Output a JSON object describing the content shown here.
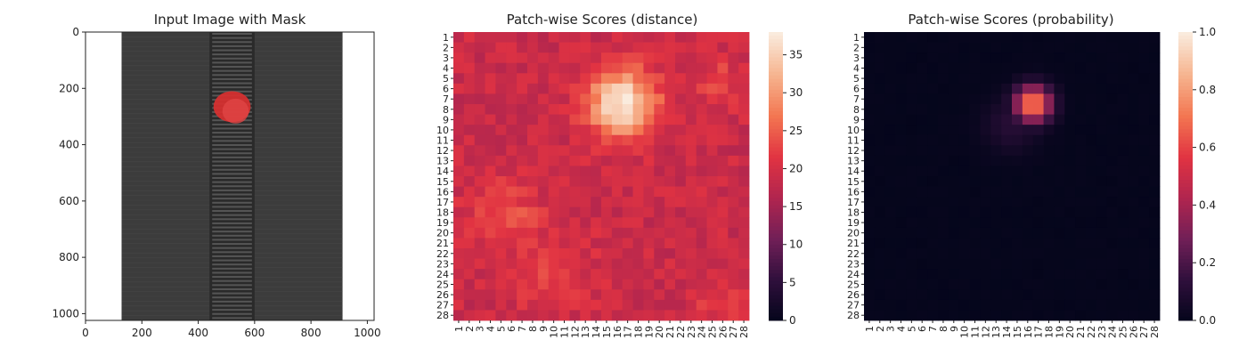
{
  "figure": {
    "colormap_stops": [
      "#03051a",
      "#2e0f3b",
      "#701f57",
      "#b0254f",
      "#e13342",
      "#f37651",
      "#f6b48f",
      "#faebdd"
    ]
  },
  "chart_data": [
    {
      "type": "image",
      "title": "Input Image with Mask",
      "xlim": [
        0,
        1024
      ],
      "ylim": [
        1024,
        0
      ],
      "xticks": [
        0,
        200,
        400,
        600,
        800,
        1000
      ],
      "yticks": [
        0,
        200,
        400,
        600,
        800,
        1000
      ],
      "fabric_x_range": [
        128,
        912
      ],
      "zipper_x_range": [
        440,
        600
      ],
      "mask_center": [
        520,
        265
      ],
      "mask_radius": [
        55,
        55
      ],
      "colors": {
        "fabric": "#3c3c3c",
        "zipper": "#2a2a2a",
        "mask": "#d93030",
        "background": "#ffffff"
      }
    },
    {
      "type": "heatmap",
      "title": "Patch-wise Scores (distance)",
      "rows": 28,
      "cols": 28,
      "row_labels": [
        "1",
        "2",
        "3",
        "4",
        "5",
        "6",
        "7",
        "8",
        "9",
        "10",
        "11",
        "12",
        "13",
        "14",
        "15",
        "16",
        "17",
        "18",
        "19",
        "20",
        "21",
        "22",
        "23",
        "24",
        "25",
        "26",
        "27",
        "28"
      ],
      "col_labels": [
        "1",
        "2",
        "3",
        "4",
        "5",
        "6",
        "7",
        "8",
        "9",
        "10",
        "11",
        "12",
        "13",
        "14",
        "15",
        "16",
        "17",
        "18",
        "19",
        "20",
        "21",
        "22",
        "23",
        "24",
        "25",
        "26",
        "27",
        "28"
      ],
      "vmin": 0,
      "vmax": 38,
      "colorbar_ticks": [
        "0",
        "5",
        "10",
        "15",
        "20",
        "25",
        "30",
        "35"
      ],
      "colorbar_values": [
        0,
        5,
        10,
        15,
        20,
        25,
        30,
        35
      ],
      "base_level": 19,
      "hotspots": [
        {
          "row": 6.5,
          "col": 15.5,
          "peak": 38,
          "sigma": 2.3
        },
        {
          "row": 17.5,
          "col": 4.5,
          "peak": 24,
          "sigma": 2.5
        },
        {
          "row": 4.5,
          "col": 24.5,
          "peak": 24,
          "sigma": 1.5
        },
        {
          "row": 22.5,
          "col": 8.5,
          "peak": 22,
          "sigma": 3
        },
        {
          "row": 26,
          "col": 25,
          "peak": 22,
          "sigma": 2
        }
      ]
    },
    {
      "type": "heatmap",
      "title": "Patch-wise Scores (probability)",
      "rows": 28,
      "cols": 28,
      "row_labels": [
        "1",
        "2",
        "3",
        "4",
        "5",
        "6",
        "7",
        "8",
        "9",
        "10",
        "11",
        "12",
        "13",
        "14",
        "15",
        "16",
        "17",
        "18",
        "19",
        "20",
        "21",
        "22",
        "23",
        "24",
        "25",
        "26",
        "27",
        "28"
      ],
      "col_labels": [
        "1",
        "2",
        "3",
        "4",
        "5",
        "6",
        "7",
        "8",
        "9",
        "10",
        "11",
        "12",
        "13",
        "14",
        "15",
        "16",
        "17",
        "18",
        "19",
        "20",
        "21",
        "22",
        "23",
        "24",
        "25",
        "26",
        "27",
        "28"
      ],
      "vmin": 0,
      "vmax": 1,
      "colorbar_ticks": [
        "0.0",
        "0.2",
        "0.4",
        "0.6",
        "0.8",
        "1.0"
      ],
      "colorbar_values": [
        0,
        0.2,
        0.4,
        0.6,
        0.8,
        1.0
      ],
      "base_level": 0.01,
      "hotspots": [
        {
          "row": 6.5,
          "col": 15.5,
          "peak": 0.78,
          "sigma": 1.2
        },
        {
          "row": 8.5,
          "col": 13.5,
          "peak": 0.12,
          "sigma": 1.8
        }
      ]
    }
  ]
}
